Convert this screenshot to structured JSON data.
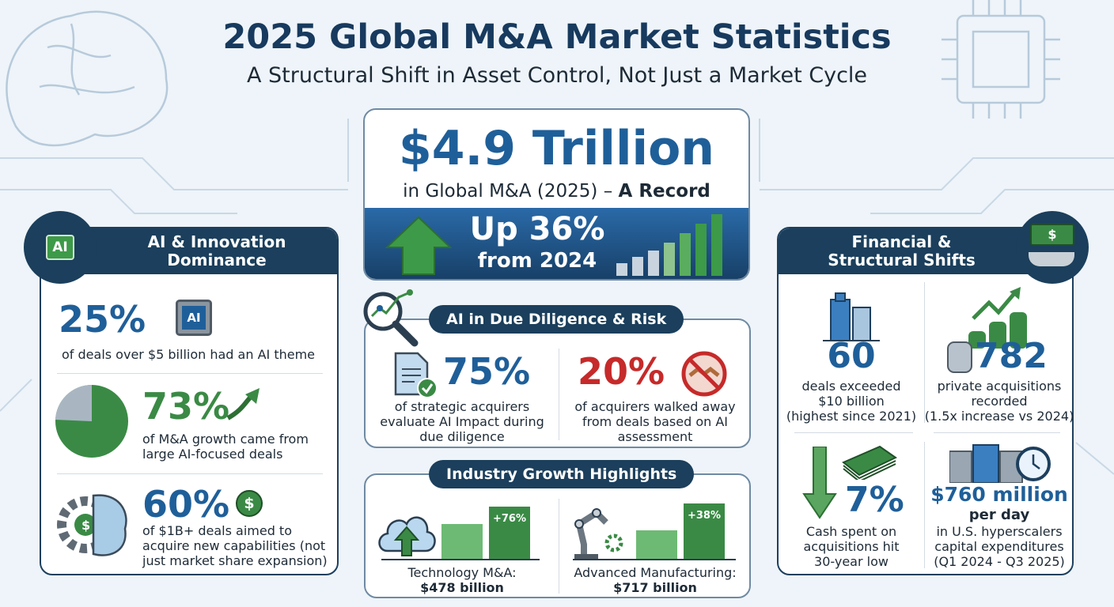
{
  "header": {
    "title": "2025 Global M&A Market Statistics",
    "subtitle": "A Structural Shift in Asset Control, Not Just a Market Cycle"
  },
  "hero": {
    "value": "$4.9 Trillion",
    "caption_prefix": "in Global M&A (2025) – ",
    "caption_bold": "A Record",
    "growth": "Up 36%",
    "growth_sub": "from 2024"
  },
  "left_panel": {
    "title_line1": "AI & Innovation",
    "title_line2": "Dominance",
    "icon_label": "AI",
    "stats": [
      {
        "value": "25%",
        "icon_label": "AI",
        "text": "of deals over $5 billion had an AI theme"
      },
      {
        "value": "73%",
        "text_line1": "of M&A growth came from",
        "text_line2": "large AI-focused deals"
      },
      {
        "value": "60%",
        "icon_label": "$",
        "text_line1": "of $1B+ deals aimed to",
        "text_line2": "acquire new capabilities (not",
        "text_line3": "just market share expansion)"
      }
    ]
  },
  "due_diligence": {
    "title": "AI in Due Diligence & Risk",
    "stats": [
      {
        "value": "75%",
        "text_line1": "of strategic acquirers",
        "text_line2": "evaluate AI Impact during",
        "text_line3": "due diligence"
      },
      {
        "value": "20%",
        "text_line1": "of acquirers walked away",
        "text_line2": "from deals based on AI",
        "text_line3": "assessment"
      }
    ]
  },
  "industry": {
    "title": "Industry Growth Highlights",
    "items": [
      {
        "growth": "+76%",
        "label": "Technology M&A:",
        "value": "$478 billion"
      },
      {
        "growth": "+38%",
        "label": "Advanced Manufacturing:",
        "value": "$717 billion"
      }
    ]
  },
  "right_panel": {
    "title_line1": "Financial &",
    "title_line2": "Structural Shifts",
    "stats": [
      {
        "value": "60",
        "text_line1": "deals exceeded",
        "text_line2": "$10 billion",
        "text_line3": "(highest since 2021)"
      },
      {
        "value": "782",
        "text_line1": "private acquisitions",
        "text_line2": "recorded",
        "text_line3": "(1.5x increase vs 2024)"
      },
      {
        "value": "7%",
        "text_line1": "Cash spent on",
        "text_line2": "acquisitions hit",
        "text_line3": "30-year low"
      },
      {
        "value": "$760 million",
        "value_sub": "per day",
        "text_line1": "in U.S. hyperscalers",
        "text_line2": "capital expenditures",
        "text_line3": "(Q1 2024 - Q3 2025)"
      }
    ]
  },
  "colors": {
    "navy": "#1b3f5c",
    "blue": "#1f5f99",
    "green": "#3a8a45",
    "red": "#c62a2a",
    "background": "#eef4f9"
  }
}
